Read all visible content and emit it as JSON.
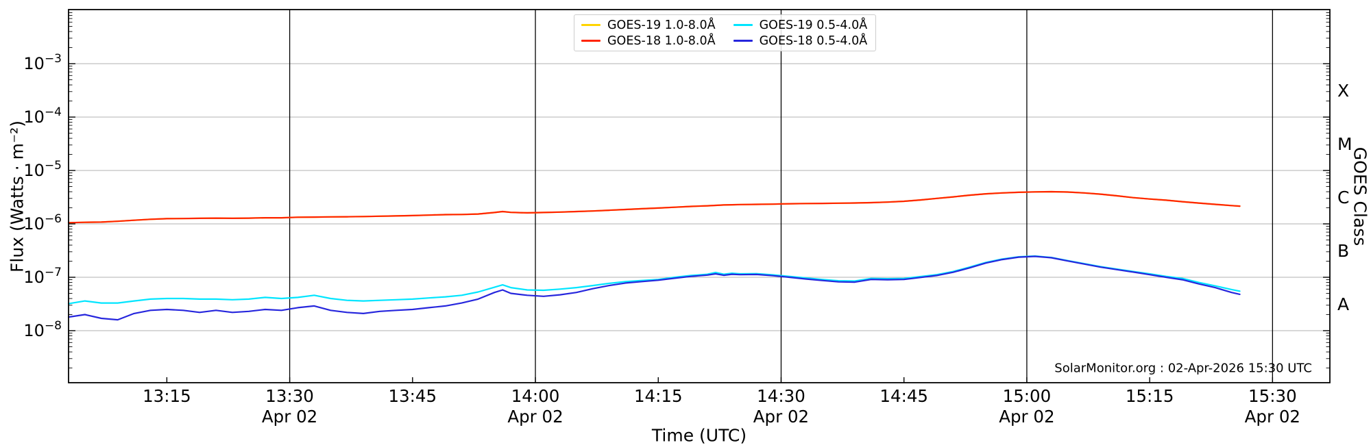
{
  "figure": {
    "watermark": "SolarMonitor.org : 02-Apr-2026 15:30 UTC",
    "xlabel": "Time (UTC)",
    "ylabel": "Flux (Watts · m⁻²)",
    "ylabel_right": "GOES Class"
  },
  "legend": {
    "items": [
      {
        "label": "GOES-19 1.0-8.0Å",
        "color": "#ffd400"
      },
      {
        "label": "GOES-18 1.0-8.0Å",
        "color": "#ff2400"
      },
      {
        "label": "GOES-19 0.5-4.0Å",
        "color": "#00e5ff"
      },
      {
        "label": "GOES-18 0.5-4.0Å",
        "color": "#2626dd"
      }
    ]
  },
  "chart_data": {
    "type": "line",
    "title": "",
    "xlabel": "Time (UTC)",
    "ylabel": "Flux (Watts · m⁻²)",
    "right_axis_label": "GOES Class",
    "x_axis": {
      "units": "minutes after 13:00 UTC on 02-Apr-2026",
      "xlim_minutes": [
        3,
        157
      ],
      "major_ticks": [
        {
          "m": 15,
          "label": "13:15"
        },
        {
          "m": 30,
          "label": "13:30",
          "date": "Apr 02"
        },
        {
          "m": 45,
          "label": "13:45"
        },
        {
          "m": 60,
          "label": "14:00",
          "date": "Apr 02"
        },
        {
          "m": 75,
          "label": "14:15"
        },
        {
          "m": 90,
          "label": "14:30",
          "date": "Apr 02"
        },
        {
          "m": 105,
          "label": "14:45"
        },
        {
          "m": 120,
          "label": "15:00",
          "date": "Apr 02"
        },
        {
          "m": 135,
          "label": "15:15"
        },
        {
          "m": 150,
          "label": "15:30",
          "date": "Apr 02"
        }
      ],
      "date_line_minutes": [
        30,
        60,
        90,
        120,
        150
      ]
    },
    "y_axis": {
      "scale": "log",
      "ylim": [
        1e-09,
        0.01
      ],
      "tick_exps": [
        -3,
        -4,
        -5,
        -6,
        -7,
        -8
      ],
      "tick_labels": [
        "10⁻³",
        "10⁻⁴",
        "10⁻⁵",
        "10⁻⁶",
        "10⁻⁷",
        "10⁻⁸"
      ]
    },
    "right_axis": {
      "classes": [
        {
          "label": "X",
          "exp": -3.5
        },
        {
          "label": "M",
          "exp": -4.5
        },
        {
          "label": "C",
          "exp": -5.5
        },
        {
          "label": "B",
          "exp": -6.5
        },
        {
          "label": "A",
          "exp": -7.5
        }
      ]
    },
    "grid": {
      "h_color": "#b0b0b0",
      "v_color": "#000000",
      "spine_color": "#000000"
    },
    "x_minutes": [
      3,
      5,
      7,
      9,
      11,
      13,
      15,
      17,
      19,
      21,
      23,
      25,
      27,
      29,
      31,
      33,
      35,
      37,
      39,
      41,
      43,
      45,
      47,
      49,
      51,
      53,
      55,
      56,
      57,
      59,
      61,
      63,
      65,
      67,
      69,
      71,
      73,
      75,
      77,
      79,
      81,
      82,
      83,
      84,
      85,
      87,
      89,
      91,
      93,
      95,
      97,
      99,
      101,
      103,
      105,
      107,
      109,
      111,
      113,
      115,
      117,
      119,
      121,
      123,
      125,
      127,
      129,
      131,
      133,
      135,
      137,
      139,
      141,
      143,
      145,
      146
    ],
    "series": [
      {
        "name": "GOES-19 1.0-8.0Å",
        "color": "#ffd400",
        "width": 2.2,
        "y": [
          1.05e-06,
          1.07e-06,
          1.08e-06,
          1.12e-06,
          1.17e-06,
          1.22e-06,
          1.25e-06,
          1.26e-06,
          1.27e-06,
          1.28e-06,
          1.27e-06,
          1.28e-06,
          1.3e-06,
          1.3e-06,
          1.33e-06,
          1.34e-06,
          1.35e-06,
          1.36e-06,
          1.37e-06,
          1.39e-06,
          1.41e-06,
          1.43e-06,
          1.46e-06,
          1.49e-06,
          1.5e-06,
          1.53e-06,
          1.63e-06,
          1.7e-06,
          1.64e-06,
          1.61e-06,
          1.63e-06,
          1.66e-06,
          1.7e-06,
          1.74e-06,
          1.8e-06,
          1.86e-06,
          1.92e-06,
          1.98e-06,
          2.05e-06,
          2.12e-06,
          2.18e-06,
          2.22e-06,
          2.26e-06,
          2.28e-06,
          2.3e-06,
          2.32e-06,
          2.34e-06,
          2.38e-06,
          2.4e-06,
          2.42e-06,
          2.44e-06,
          2.46e-06,
          2.5e-06,
          2.56e-06,
          2.65e-06,
          2.8e-06,
          3e-06,
          3.2e-06,
          3.45e-06,
          3.65e-06,
          3.8e-06,
          3.9e-06,
          3.97e-06,
          4e-06,
          3.95e-06,
          3.8e-06,
          3.6e-06,
          3.35e-06,
          3.1e-06,
          2.92e-06,
          2.78e-06,
          2.6e-06,
          2.45e-06,
          2.32e-06,
          2.2e-06,
          2.15e-06
        ]
      },
      {
        "name": "GOES-18 1.0-8.0Å",
        "color": "#ff2400",
        "width": 2.2,
        "y": [
          1.05e-06,
          1.07e-06,
          1.08e-06,
          1.12e-06,
          1.17e-06,
          1.22e-06,
          1.25e-06,
          1.26e-06,
          1.27e-06,
          1.28e-06,
          1.27e-06,
          1.28e-06,
          1.3e-06,
          1.3e-06,
          1.33e-06,
          1.34e-06,
          1.35e-06,
          1.36e-06,
          1.37e-06,
          1.39e-06,
          1.41e-06,
          1.43e-06,
          1.46e-06,
          1.49e-06,
          1.5e-06,
          1.53e-06,
          1.63e-06,
          1.7e-06,
          1.64e-06,
          1.61e-06,
          1.63e-06,
          1.66e-06,
          1.7e-06,
          1.74e-06,
          1.8e-06,
          1.86e-06,
          1.92e-06,
          1.98e-06,
          2.05e-06,
          2.12e-06,
          2.18e-06,
          2.22e-06,
          2.26e-06,
          2.28e-06,
          2.3e-06,
          2.32e-06,
          2.34e-06,
          2.38e-06,
          2.4e-06,
          2.42e-06,
          2.44e-06,
          2.46e-06,
          2.5e-06,
          2.56e-06,
          2.65e-06,
          2.8e-06,
          3e-06,
          3.2e-06,
          3.45e-06,
          3.65e-06,
          3.8e-06,
          3.9e-06,
          3.97e-06,
          4e-06,
          3.95e-06,
          3.8e-06,
          3.6e-06,
          3.35e-06,
          3.1e-06,
          2.92e-06,
          2.78e-06,
          2.6e-06,
          2.45e-06,
          2.32e-06,
          2.2e-06,
          2.15e-06
        ]
      },
      {
        "name": "GOES-19 0.5-4.0Å",
        "color": "#00e5ff",
        "width": 2.2,
        "y": [
          3.2e-08,
          3.6e-08,
          3.3e-08,
          3.3e-08,
          3.6e-08,
          3.9e-08,
          4e-08,
          4e-08,
          3.9e-08,
          3.9e-08,
          3.8e-08,
          3.9e-08,
          4.2e-08,
          4e-08,
          4.2e-08,
          4.6e-08,
          4e-08,
          3.7e-08,
          3.6e-08,
          3.7e-08,
          3.8e-08,
          3.9e-08,
          4.1e-08,
          4.3e-08,
          4.6e-08,
          5.3e-08,
          6.5e-08,
          7.2e-08,
          6.4e-08,
          5.8e-08,
          5.7e-08,
          6e-08,
          6.4e-08,
          7e-08,
          7.7e-08,
          8.3e-08,
          8.7e-08,
          9.1e-08,
          1e-07,
          1.08e-07,
          1.14e-07,
          1.23e-07,
          1.14e-07,
          1.19e-07,
          1.16e-07,
          1.17e-07,
          1.11e-07,
          1.04e-07,
          9.7e-08,
          9.1e-08,
          8.6e-08,
          8.5e-08,
          9.5e-08,
          9.4e-08,
          9.5e-08,
          1.03e-07,
          1.12e-07,
          1.28e-07,
          1.55e-07,
          1.9e-07,
          2.2e-07,
          2.42e-07,
          2.5e-07,
          2.35e-07,
          2.05e-07,
          1.8e-07,
          1.58e-07,
          1.42e-07,
          1.28e-07,
          1.16e-07,
          1.04e-07,
          9.5e-08,
          8e-08,
          6.9e-08,
          5.9e-08,
          5.5e-08
        ]
      },
      {
        "name": "GOES-18 0.5-4.0Å",
        "color": "#2626dd",
        "width": 2.2,
        "y": [
          1.8e-08,
          2e-08,
          1.7e-08,
          1.6e-08,
          2.1e-08,
          2.4e-08,
          2.5e-08,
          2.4e-08,
          2.2e-08,
          2.4e-08,
          2.2e-08,
          2.3e-08,
          2.5e-08,
          2.4e-08,
          2.7e-08,
          2.9e-08,
          2.4e-08,
          2.2e-08,
          2.1e-08,
          2.3e-08,
          2.4e-08,
          2.5e-08,
          2.7e-08,
          2.9e-08,
          3.3e-08,
          3.9e-08,
          5.2e-08,
          5.8e-08,
          5e-08,
          4.6e-08,
          4.4e-08,
          4.7e-08,
          5.2e-08,
          6.1e-08,
          7e-08,
          7.8e-08,
          8.3e-08,
          8.8e-08,
          9.6e-08,
          1.04e-07,
          1.1e-07,
          1.16e-07,
          1.09e-07,
          1.14e-07,
          1.12e-07,
          1.13e-07,
          1.07e-07,
          1e-07,
          9.3e-08,
          8.7e-08,
          8.2e-08,
          8.1e-08,
          9.1e-08,
          9e-08,
          9.1e-08,
          9.9e-08,
          1.08e-07,
          1.24e-07,
          1.5e-07,
          1.85e-07,
          2.15e-07,
          2.38e-07,
          2.46e-07,
          2.32e-07,
          2.02e-07,
          1.77e-07,
          1.55e-07,
          1.39e-07,
          1.25e-07,
          1.12e-07,
          1e-07,
          9e-08,
          7.5e-08,
          6.4e-08,
          5.2e-08,
          4.8e-08
        ]
      }
    ]
  }
}
